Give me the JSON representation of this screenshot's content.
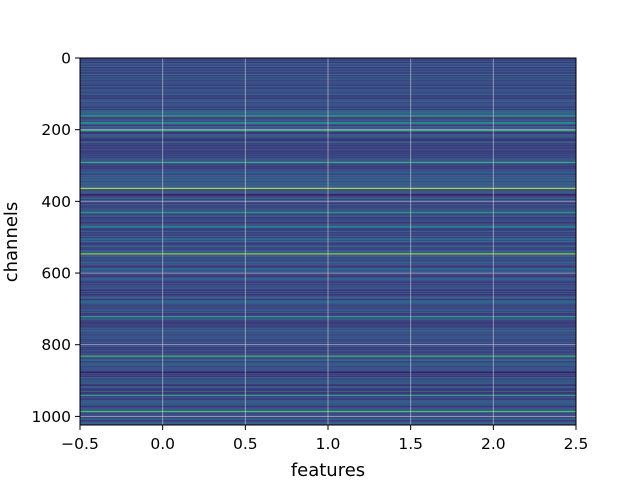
{
  "chart_data": {
    "type": "heatmap",
    "title": "",
    "xlabel": "features",
    "ylabel": "channels",
    "xlim": [
      -0.5,
      2.5
    ],
    "ylim": [
      1024,
      0
    ],
    "y_inverted": true,
    "grid": true,
    "colormap": "viridis",
    "x_ticks": [
      -0.5,
      0.0,
      0.5,
      1.0,
      1.5,
      2.0,
      2.5
    ],
    "x_tick_labels": [
      "−0.5",
      "0.0",
      "0.5",
      "1.0",
      "1.5",
      "2.0",
      "2.5"
    ],
    "y_ticks": [
      0,
      200,
      400,
      600,
      800,
      1000
    ],
    "y_tick_labels": [
      "0",
      "200",
      "400",
      "600",
      "800",
      "1000"
    ],
    "n_rows": 1024,
    "n_cols": 3,
    "base_level": 0.25,
    "highlight_rows": [
      {
        "row": 160,
        "value": 0.6
      },
      {
        "row": 180,
        "value": 0.55
      },
      {
        "row": 200,
        "value": 0.65
      },
      {
        "row": 290,
        "value": 0.6
      },
      {
        "row": 362,
        "value": 0.9
      },
      {
        "row": 380,
        "value": 0.05
      },
      {
        "row": 430,
        "value": 0.55
      },
      {
        "row": 470,
        "value": 0.5
      },
      {
        "row": 545,
        "value": 0.85
      },
      {
        "row": 720,
        "value": 0.55
      },
      {
        "row": 830,
        "value": 0.65
      },
      {
        "row": 875,
        "value": 0.05
      },
      {
        "row": 940,
        "value": 0.55
      },
      {
        "row": 985,
        "value": 0.7
      }
    ]
  }
}
